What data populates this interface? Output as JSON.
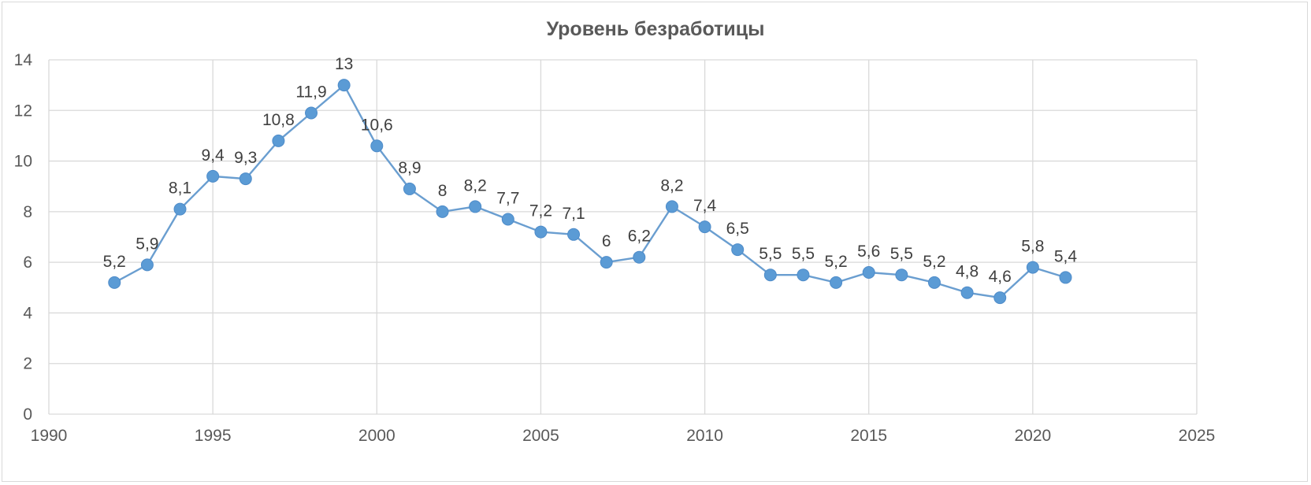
{
  "chart_data": {
    "type": "scatter",
    "title": "Уровень безработицы",
    "xlabel": "",
    "ylabel": "",
    "xlim": [
      1990,
      2025
    ],
    "ylim": [
      0,
      14
    ],
    "x_ticks": [
      1990,
      1995,
      2000,
      2005,
      2010,
      2015,
      2020,
      2025
    ],
    "y_ticks": [
      0,
      2,
      4,
      6,
      8,
      10,
      12,
      14
    ],
    "grid": true,
    "legend": "none",
    "line_color": "#6a9ed0",
    "marker_color": "#5b9bd5",
    "series": [
      {
        "x": [
          1992,
          1993,
          1994,
          1995,
          1996,
          1997,
          1998,
          1999,
          2000,
          2001,
          2002,
          2003,
          2004,
          2005,
          2006,
          2007,
          2008,
          2009,
          2010,
          2011,
          2012,
          2013,
          2014,
          2015,
          2016,
          2017,
          2018,
          2019,
          2020,
          2021
        ],
        "y": [
          5.2,
          5.9,
          8.1,
          9.4,
          9.3,
          10.8,
          11.9,
          13,
          10.6,
          8.9,
          8,
          8.2,
          7.7,
          7.2,
          7.1,
          6,
          6.2,
          8.2,
          7.4,
          6.5,
          5.5,
          5.5,
          5.2,
          5.6,
          5.5,
          5.2,
          4.8,
          4.6,
          5.8,
          5.4
        ],
        "labels": [
          "5,2",
          "5,9",
          "8,1",
          "9,4",
          "9,3",
          "10,8",
          "11,9",
          "13",
          "10,6",
          "8,9",
          "8",
          "8,2",
          "7,7",
          "7,2",
          "7,1",
          "6",
          "6,2",
          "8,2",
          "7,4",
          "6,5",
          "5,5",
          "5,5",
          "5,2",
          "5,6",
          "5,5",
          "5,2",
          "4,8",
          "4,6",
          "5,8",
          "5,4"
        ]
      }
    ]
  }
}
